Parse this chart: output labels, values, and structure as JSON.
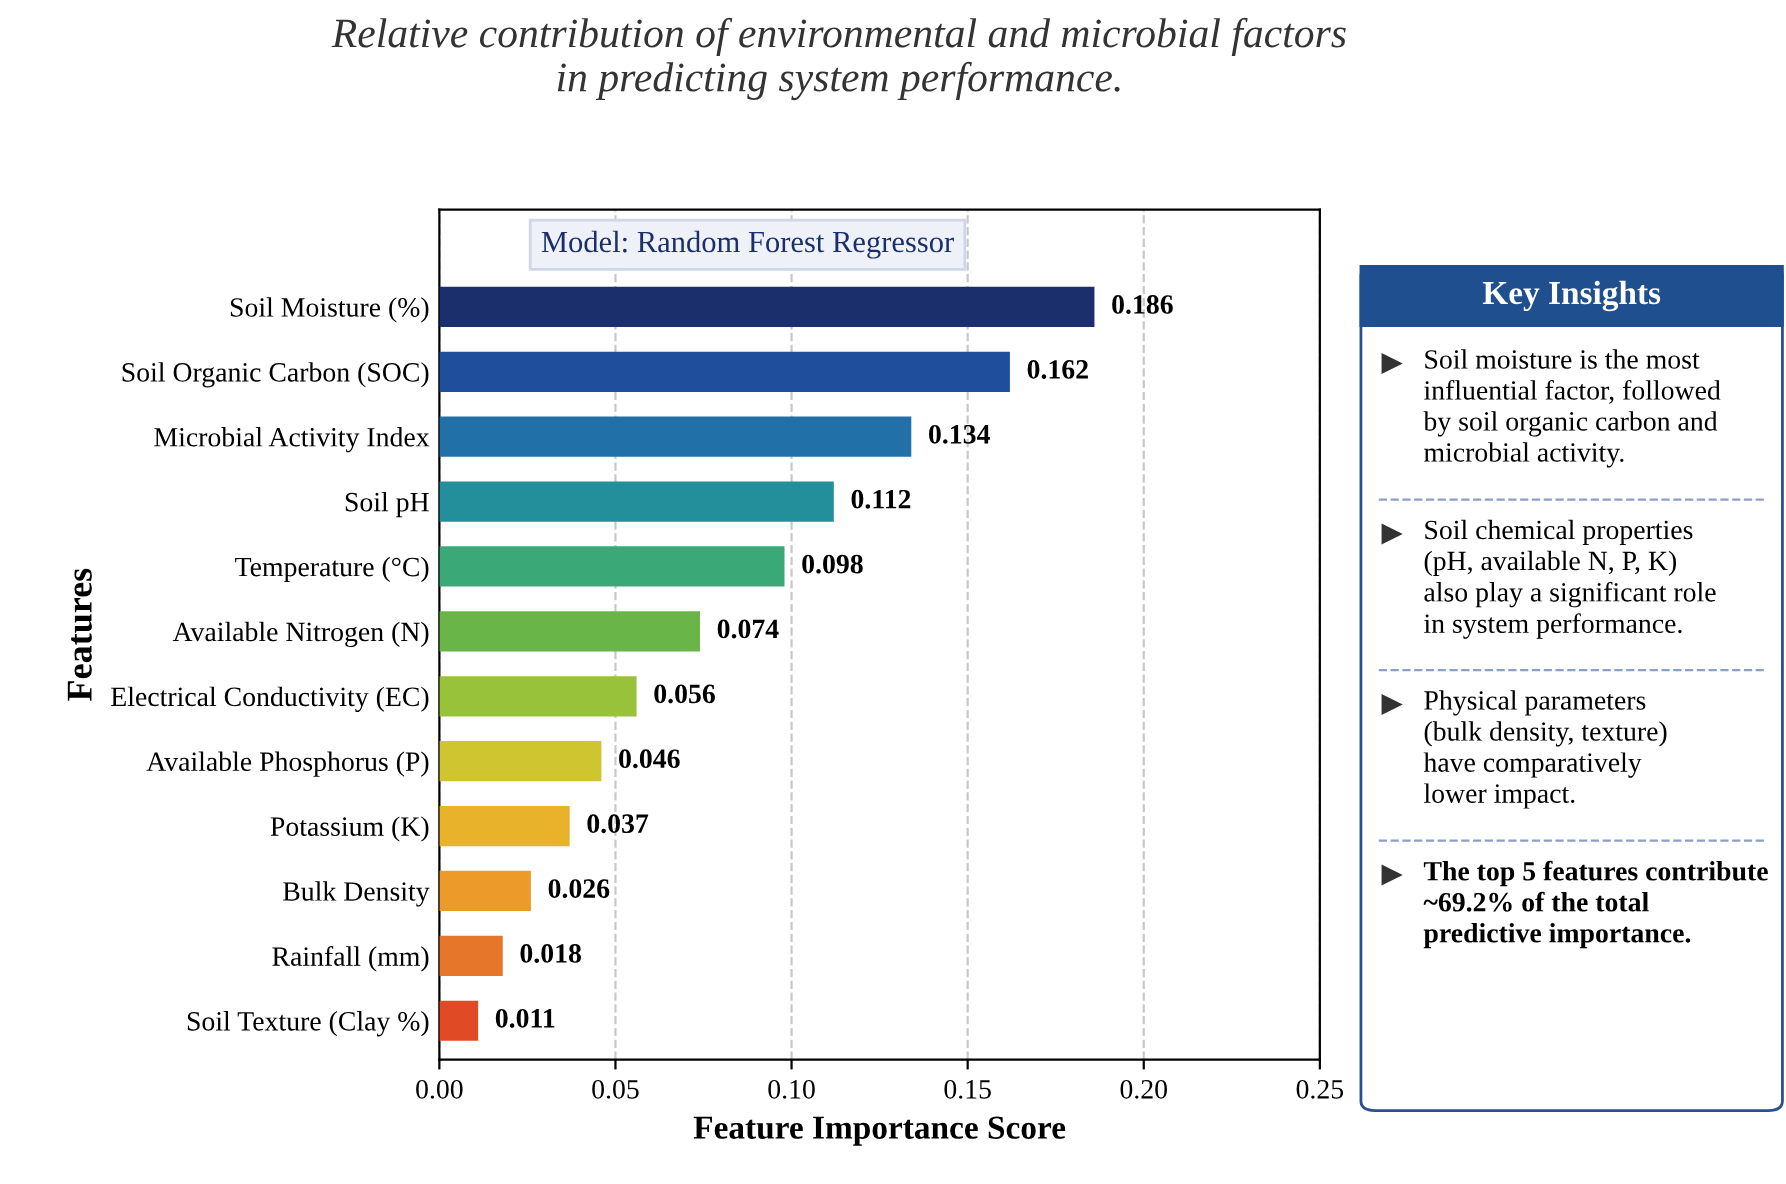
{
  "chart_data": {
    "type": "bar",
    "orientation": "horizontal",
    "title": "Relative contribution of environmental and microbial factors\nin predicting system performance.",
    "xlabel": "Feature Importance Score",
    "ylabel": "Features",
    "categories": [
      "Soil Moisture (%)",
      "Soil Organic Carbon (SOC)",
      "Microbial Activity Index",
      "Soil pH",
      "Temperature (°C)",
      "Available Nitrogen (N)",
      "Electrical Conductivity (EC)",
      "Available Phosphorus (P)",
      "Potassium (K)",
      "Bulk Density",
      "Rainfall (mm)",
      "Soil Texture (Clay %)"
    ],
    "values": [
      0.186,
      0.162,
      0.134,
      0.112,
      0.098,
      0.074,
      0.056,
      0.046,
      0.037,
      0.026,
      0.018,
      0.011
    ],
    "colors": [
      "#1a2f6b",
      "#1f4f9c",
      "#2270a8",
      "#238f9b",
      "#3aa877",
      "#6ab547",
      "#98c23a",
      "#cfc531",
      "#e8b22a",
      "#ec9a2a",
      "#e6772a",
      "#e04a25"
    ],
    "xlim": [
      0,
      0.25
    ],
    "xticks": [
      {
        "value": 0,
        "label": "0.00"
      },
      {
        "value": 0.05,
        "label": "0.05"
      },
      {
        "value": 0.1,
        "label": "0.10"
      },
      {
        "value": 0.15,
        "label": "0.15"
      },
      {
        "value": 0.2,
        "label": "0.20"
      },
      {
        "value": 0.25,
        "label": "0.25"
      }
    ],
    "grid": "x",
    "data_labels": true,
    "annotations": [
      "Model: Random Forest Regressor",
      "Key Insights",
      "Soil moisture is the most\ninfluential factor, followed\nby soil organic carbon and\nmicrobial activity.",
      "Soil chemical properties\n(pH, available N, P, K)\nalso play a significant role\nin system performance.",
      "Physical parameters\n(bulk density, texture)\nhave comparatively\nlower impact.",
      "The top 5 features contribute\n~69.2% of the total\npredictive importance."
    ]
  }
}
